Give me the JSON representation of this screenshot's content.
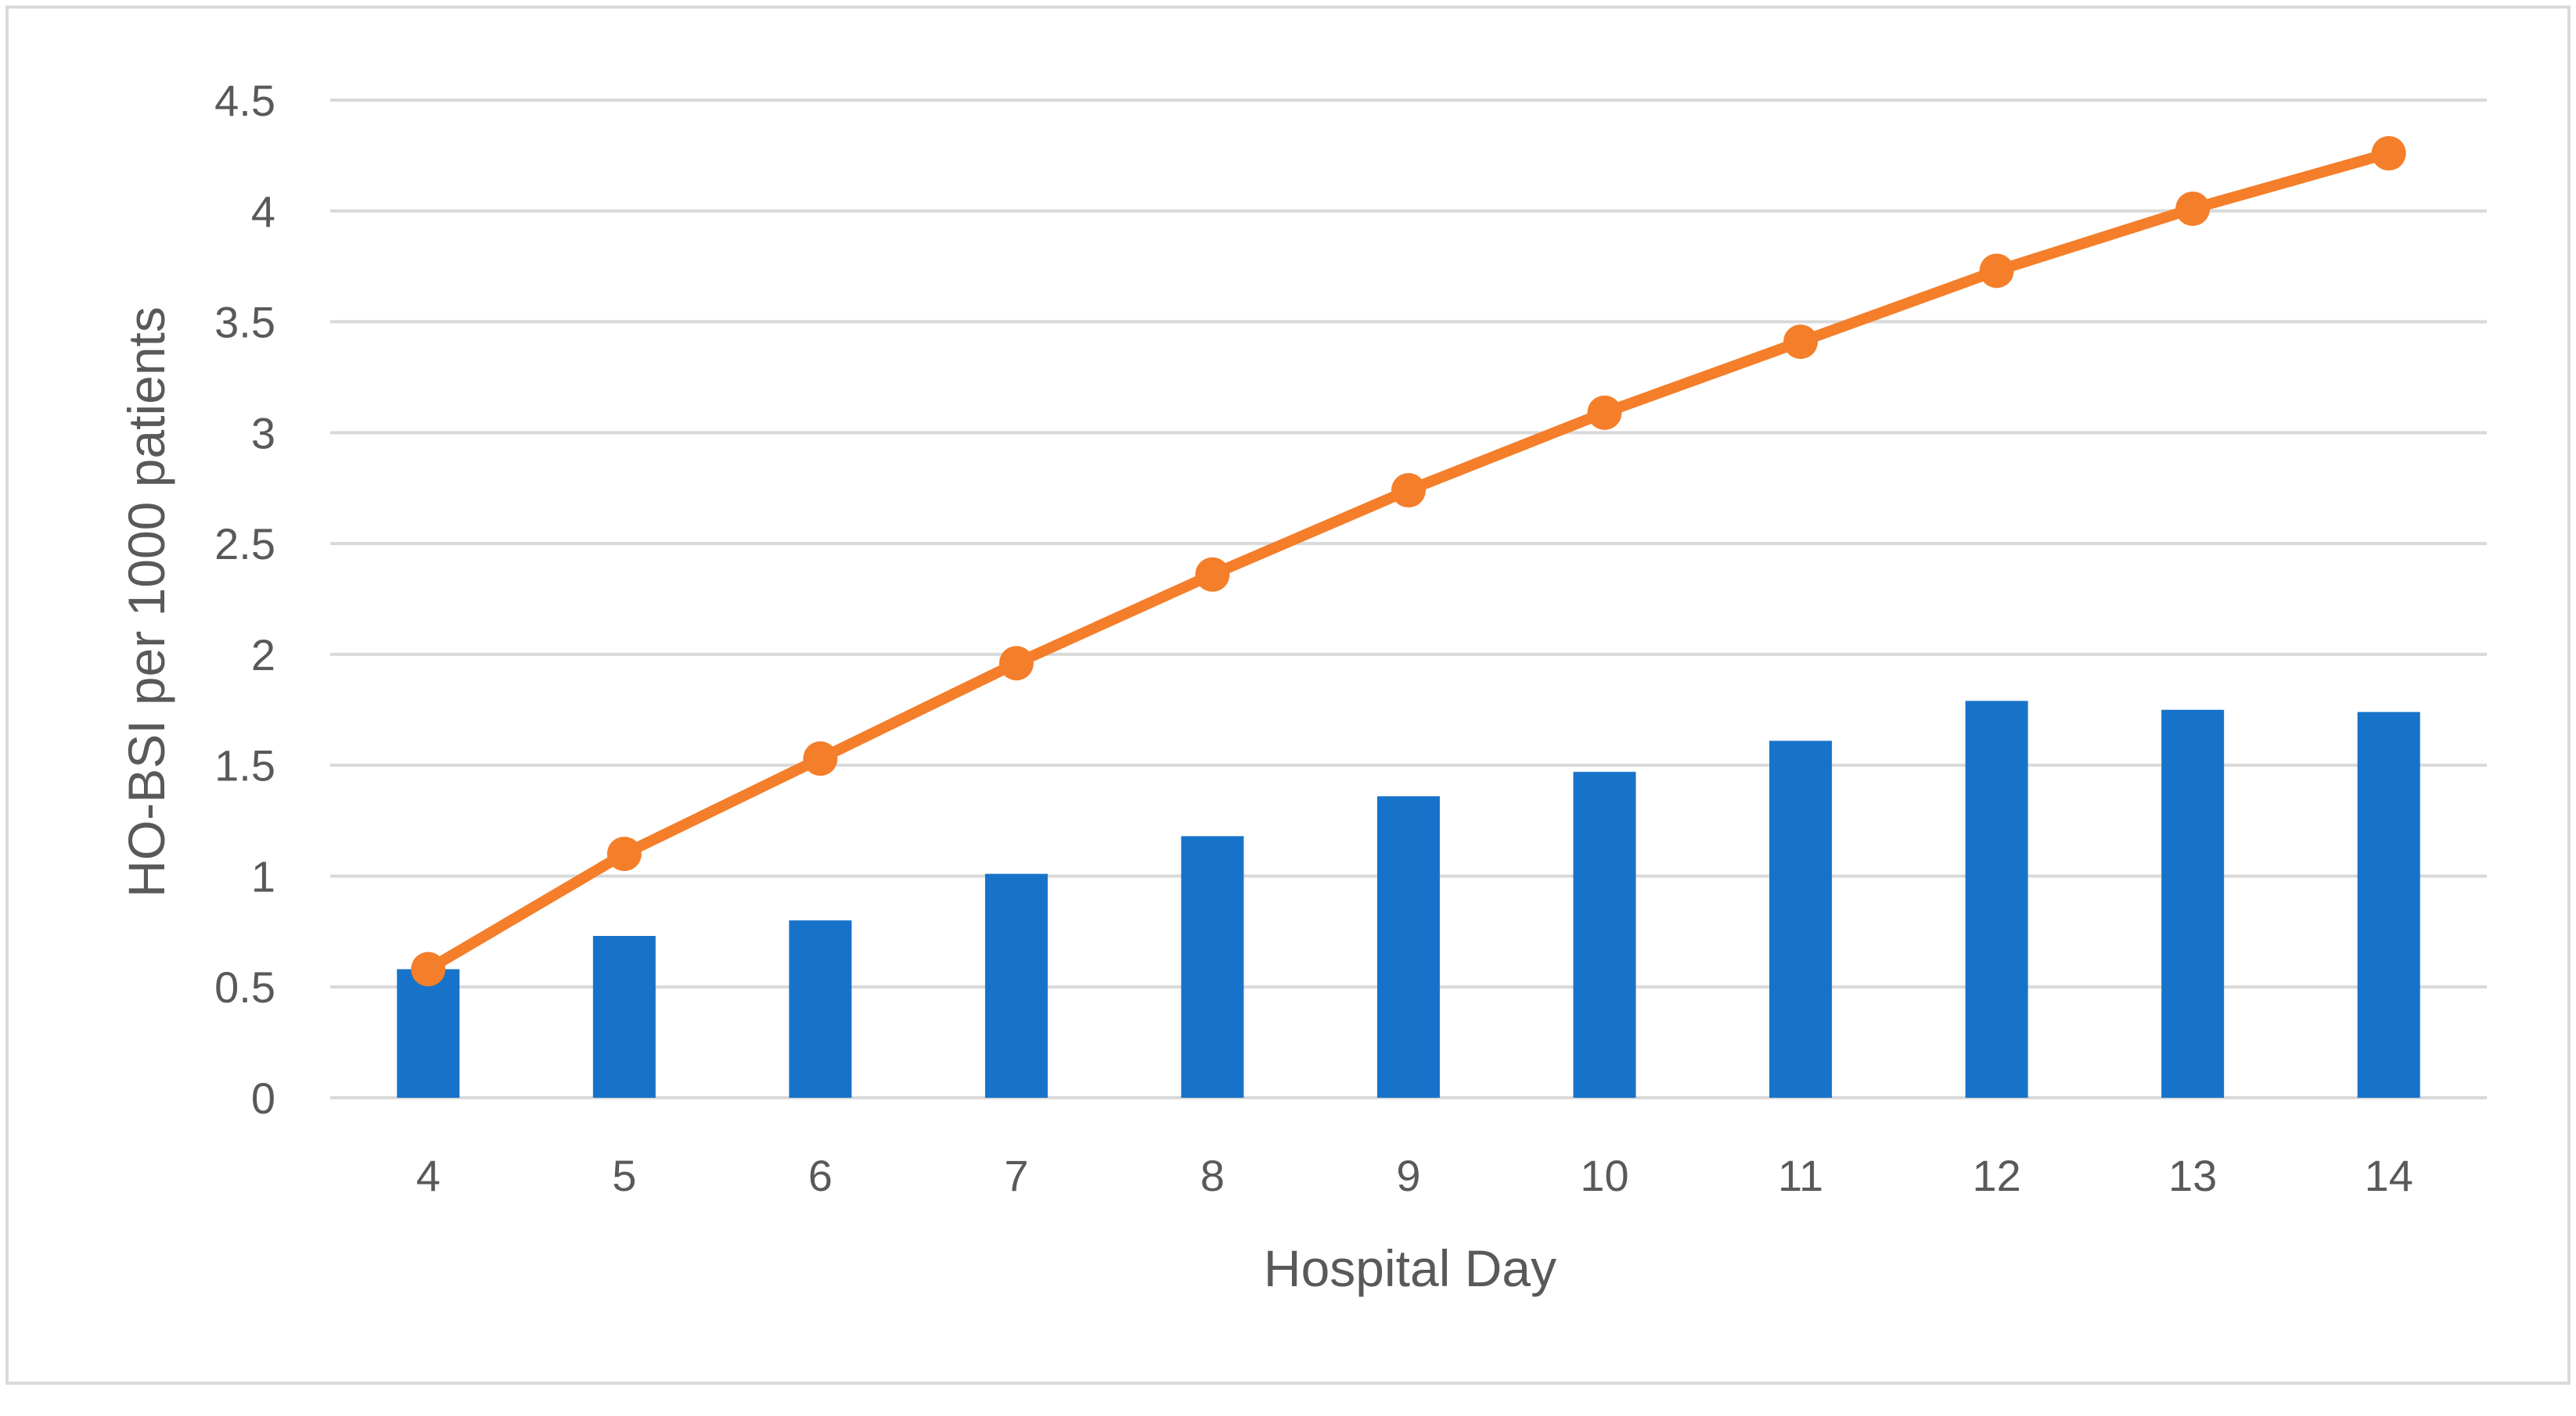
{
  "chart_data": {
    "type": "bar",
    "title": "",
    "xlabel": "Hospital Day",
    "ylabel": "HO-BSI per 1000 patients",
    "categories": [
      "4",
      "5",
      "6",
      "7",
      "8",
      "9",
      "10",
      "11",
      "12",
      "13",
      "14"
    ],
    "ylim": [
      0,
      4.5
    ],
    "yticks": [
      "0",
      "0.5",
      "1",
      "1.5",
      "2",
      "2.5",
      "3",
      "3.5",
      "4",
      "4.5"
    ],
    "grid": true,
    "legend": "none",
    "series": [
      {
        "type": "bar",
        "color": "#1773C9",
        "values": [
          0.58,
          0.73,
          0.8,
          1.01,
          1.18,
          1.36,
          1.47,
          1.61,
          1.79,
          1.75,
          1.74
        ]
      },
      {
        "type": "line",
        "color": "#F47E2A",
        "marker": "circle",
        "values": [
          0.58,
          1.1,
          1.53,
          1.96,
          2.36,
          2.74,
          3.09,
          3.41,
          3.73,
          4.01,
          4.26
        ]
      }
    ]
  }
}
